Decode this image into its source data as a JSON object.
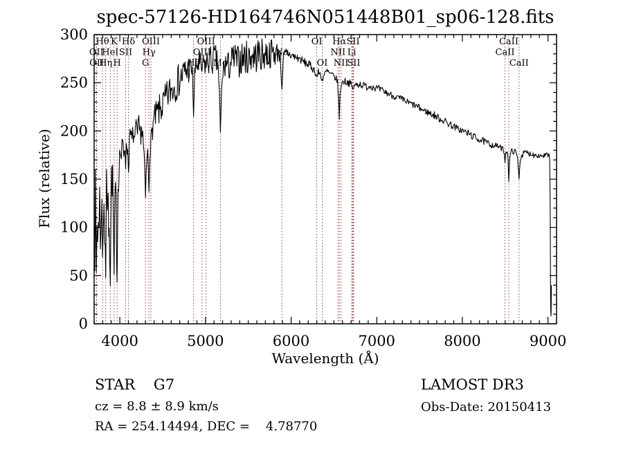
{
  "title": "spec-57126-HD164746N051448B01_sp06-128.fits",
  "annotations": {
    "class_line": "STAR    G7",
    "cz_line": "cz = 8.8 ± 8.9 km/s",
    "radec_line": "RA = 254.14494, DEC =    4.78770",
    "survey": "LAMOST DR3",
    "obs_date": "Obs-Date: 20150413"
  },
  "colors": {
    "trace": "#000000",
    "frame": "#000000",
    "marker_line": "#993432",
    "background": "#ffffff"
  },
  "chart_data": {
    "type": "line",
    "title": "spec-57126-HD164746N051448B01_sp06-128.fits",
    "xlabel": "Wavelength (Å)",
    "ylabel": "Flux (relative)",
    "xlim": [
      3700,
      9100
    ],
    "ylim": [
      0,
      300
    ],
    "x_major_ticks": [
      4000,
      5000,
      6000,
      7000,
      8000,
      9000
    ],
    "y_major_ticks": [
      0,
      50,
      100,
      150,
      200,
      250,
      300
    ],
    "x_minor_step": 100,
    "y_minor_step": 10,
    "grid": false,
    "legend": "none",
    "series_name": "flux_relative_vs_wavelength_A",
    "anchor_format": [
      "wavelength_A",
      "flux_relative",
      "noise_amplitude"
    ],
    "anchors": [
      [
        3700,
        55,
        4
      ],
      [
        3703,
        125,
        25
      ],
      [
        3708,
        90,
        40
      ],
      [
        3714,
        120,
        42
      ],
      [
        3720,
        75,
        42
      ],
      [
        3726,
        52,
        35
      ],
      [
        3733,
        110,
        42
      ],
      [
        3741,
        88,
        44
      ],
      [
        3749,
        128,
        44
      ],
      [
        3757,
        95,
        44
      ],
      [
        3765,
        122,
        44
      ],
      [
        3773,
        98,
        42
      ],
      [
        3781,
        126,
        42
      ],
      [
        3790,
        108,
        40
      ],
      [
        3798,
        68,
        30
      ],
      [
        3806,
        118,
        38
      ],
      [
        3815,
        135,
        40
      ],
      [
        3824,
        100,
        42
      ],
      [
        3835,
        60,
        30
      ],
      [
        3845,
        122,
        40
      ],
      [
        3854,
        138,
        40
      ],
      [
        3864,
        104,
        42
      ],
      [
        3875,
        128,
        40
      ],
      [
        3889,
        50,
        26
      ],
      [
        3899,
        135,
        34
      ],
      [
        3910,
        158,
        30
      ],
      [
        3921,
        122,
        30
      ],
      [
        3933,
        44,
        20
      ],
      [
        3944,
        132,
        26
      ],
      [
        3956,
        118,
        26
      ],
      [
        3968,
        56,
        20
      ],
      [
        3979,
        142,
        18
      ],
      [
        3991,
        165,
        15
      ],
      [
        4004,
        180,
        14
      ],
      [
        4018,
        172,
        14
      ],
      [
        4032,
        186,
        13
      ],
      [
        4046,
        178,
        13
      ],
      [
        4060,
        188,
        12
      ],
      [
        4068,
        168,
        10
      ],
      [
        4080,
        188,
        12
      ],
      [
        4092,
        178,
        11
      ],
      [
        4101,
        160,
        9
      ],
      [
        4112,
        188,
        12
      ],
      [
        4126,
        195,
        13
      ],
      [
        4142,
        188,
        13
      ],
      [
        4158,
        198,
        13
      ],
      [
        4174,
        190,
        13
      ],
      [
        4190,
        200,
        13
      ],
      [
        4206,
        194,
        14
      ],
      [
        4222,
        203,
        14
      ],
      [
        4238,
        196,
        14
      ],
      [
        4254,
        204,
        14
      ],
      [
        4268,
        194,
        13
      ],
      [
        4284,
        172,
        11
      ],
      [
        4300,
        130,
        8
      ],
      [
        4312,
        166,
        11
      ],
      [
        4326,
        176,
        11
      ],
      [
        4340,
        140,
        8
      ],
      [
        4352,
        182,
        11
      ],
      [
        4363,
        188,
        10
      ],
      [
        4376,
        200,
        12
      ],
      [
        4395,
        210,
        14
      ],
      [
        4430,
        217,
        16
      ],
      [
        4470,
        222,
        17
      ],
      [
        4510,
        228,
        17
      ],
      [
        4550,
        235,
        18
      ],
      [
        4590,
        242,
        18
      ],
      [
        4630,
        246,
        18
      ],
      [
        4670,
        250,
        18
      ],
      [
        4710,
        255,
        18
      ],
      [
        4750,
        260,
        18
      ],
      [
        4790,
        263,
        17
      ],
      [
        4830,
        265,
        13
      ],
      [
        4848,
        260,
        8
      ],
      [
        4861,
        216,
        4
      ],
      [
        4875,
        260,
        8
      ],
      [
        4893,
        267,
        13
      ],
      [
        4920,
        270,
        16
      ],
      [
        4945,
        266,
        14
      ],
      [
        4959,
        263,
        10
      ],
      [
        4982,
        270,
        14
      ],
      [
        5007,
        268,
        12
      ],
      [
        5032,
        274,
        16
      ],
      [
        5060,
        272,
        17
      ],
      [
        5090,
        275,
        17
      ],
      [
        5120,
        273,
        17
      ],
      [
        5148,
        268,
        10
      ],
      [
        5163,
        238,
        6
      ],
      [
        5175,
        198,
        3
      ],
      [
        5188,
        242,
        6
      ],
      [
        5205,
        262,
        12
      ],
      [
        5235,
        270,
        16
      ],
      [
        5268,
        266,
        17
      ],
      [
        5300,
        272,
        17
      ],
      [
        5340,
        275,
        17
      ],
      [
        5380,
        272,
        17
      ],
      [
        5420,
        275,
        18
      ],
      [
        5460,
        277,
        18
      ],
      [
        5500,
        275,
        18
      ],
      [
        5540,
        279,
        18
      ],
      [
        5580,
        277,
        18
      ],
      [
        5620,
        280,
        18
      ],
      [
        5660,
        278,
        18
      ],
      [
        5700,
        281,
        17
      ],
      [
        5740,
        279,
        16
      ],
      [
        5780,
        282,
        15
      ],
      [
        5820,
        280,
        13
      ],
      [
        5850,
        283,
        11
      ],
      [
        5872,
        278,
        7
      ],
      [
        5893,
        245,
        4
      ],
      [
        5912,
        276,
        7
      ],
      [
        5935,
        279,
        8
      ],
      [
        5960,
        281,
        7
      ],
      [
        5990,
        279,
        6
      ],
      [
        6020,
        278,
        5
      ],
      [
        6060,
        276,
        5
      ],
      [
        6100,
        275,
        4.5
      ],
      [
        6140,
        272,
        4.5
      ],
      [
        6180,
        270,
        4.5
      ],
      [
        6220,
        268,
        4.5
      ],
      [
        6255,
        265,
        4.5
      ],
      [
        6285,
        261,
        4
      ],
      [
        6300,
        256,
        3
      ],
      [
        6318,
        261,
        4
      ],
      [
        6340,
        259,
        4
      ],
      [
        6364,
        253,
        3
      ],
      [
        6384,
        258,
        4
      ],
      [
        6420,
        262,
        4
      ],
      [
        6455,
        259,
        4
      ],
      [
        6490,
        257,
        4
      ],
      [
        6520,
        255,
        4
      ],
      [
        6542,
        251,
        3
      ],
      [
        6556,
        232,
        2
      ],
      [
        6563,
        212,
        1.5
      ],
      [
        6572,
        238,
        2
      ],
      [
        6585,
        248,
        3
      ],
      [
        6610,
        252,
        4
      ],
      [
        6645,
        251,
        4
      ],
      [
        6680,
        250,
        4
      ],
      [
        6705,
        248,
        3
      ],
      [
        6717,
        244,
        3
      ],
      [
        6731,
        245,
        3
      ],
      [
        6760,
        248,
        4
      ],
      [
        6800,
        249,
        4
      ],
      [
        6845,
        247,
        4
      ],
      [
        6890,
        246,
        4
      ],
      [
        6935,
        247,
        4
      ],
      [
        6980,
        245,
        4
      ],
      [
        7030,
        243,
        4
      ],
      [
        7080,
        241,
        4
      ],
      [
        7130,
        239,
        3.5
      ],
      [
        7180,
        237,
        3.5
      ],
      [
        7230,
        235,
        3.5
      ],
      [
        7280,
        233,
        4
      ],
      [
        7330,
        231,
        4
      ],
      [
        7380,
        229,
        3.5
      ],
      [
        7430,
        227,
        3.5
      ],
      [
        7480,
        225,
        3.5
      ],
      [
        7530,
        222,
        3.5
      ],
      [
        7580,
        220,
        3.5
      ],
      [
        7630,
        218,
        4
      ],
      [
        7680,
        216,
        4
      ],
      [
        7730,
        213,
        4
      ],
      [
        7780,
        211,
        4
      ],
      [
        7830,
        208,
        4
      ],
      [
        7880,
        206,
        4
      ],
      [
        7930,
        203,
        3.5
      ],
      [
        7980,
        201,
        3.5
      ],
      [
        8030,
        199,
        4
      ],
      [
        8080,
        197,
        4
      ],
      [
        8130,
        194,
        4
      ],
      [
        8180,
        192,
        3.5
      ],
      [
        8230,
        190,
        4
      ],
      [
        8280,
        188,
        3.5
      ],
      [
        8330,
        186,
        3.5
      ],
      [
        8380,
        185,
        3
      ],
      [
        8420,
        184,
        3
      ],
      [
        8455,
        182,
        3
      ],
      [
        8480,
        181,
        2.5
      ],
      [
        8490,
        176,
        2
      ],
      [
        8498,
        168,
        1.5
      ],
      [
        8508,
        178,
        2
      ],
      [
        8522,
        180,
        2.5
      ],
      [
        8534,
        171,
        1.5
      ],
      [
        8542,
        148,
        1
      ],
      [
        8552,
        170,
        1.5
      ],
      [
        8566,
        178,
        2.5
      ],
      [
        8585,
        180,
        3
      ],
      [
        8605,
        178,
        3
      ],
      [
        8625,
        179,
        3
      ],
      [
        8645,
        171,
        2
      ],
      [
        8662,
        151,
        1
      ],
      [
        8676,
        170,
        2
      ],
      [
        8695,
        175,
        3
      ],
      [
        8720,
        177,
        3
      ],
      [
        8748,
        178,
        3
      ],
      [
        8776,
        176,
        3
      ],
      [
        8805,
        177,
        3
      ],
      [
        8835,
        175,
        3
      ],
      [
        8865,
        176,
        3
      ],
      [
        8895,
        174,
        3
      ],
      [
        8925,
        175,
        3
      ],
      [
        8955,
        174,
        3
      ],
      [
        8980,
        176,
        3
      ],
      [
        9000,
        174,
        2.5
      ],
      [
        9012,
        176,
        2
      ],
      [
        9020,
        170,
        2
      ],
      [
        9026,
        120,
        0
      ],
      [
        9031,
        15,
        0
      ],
      [
        9036,
        8,
        0
      ],
      [
        9040,
        40,
        0
      ]
    ],
    "spectral_line_markers": [
      {
        "name": "OII",
        "wavelength": 3727,
        "label_row": 2
      },
      {
        "name": "OII",
        "wavelength": 3729,
        "label_row": 3
      },
      {
        "name": "Hθ",
        "wavelength": 3798,
        "label_row": 1
      },
      {
        "name": "Hη",
        "wavelength": 3835,
        "label_row": 3
      },
      {
        "name": "HeI",
        "wavelength": 3889,
        "label_row": 2
      },
      {
        "name": "K",
        "wavelength": 3933,
        "label_row": 1
      },
      {
        "name": "H",
        "wavelength": 3968,
        "label_row": 3
      },
      {
        "name": "SII",
        "wavelength": 4068,
        "label_row": 2
      },
      {
        "name": "Hδ",
        "wavelength": 4101,
        "label_row": 1
      },
      {
        "name": "G",
        "wavelength": 4300,
        "label_row": 3
      },
      {
        "name": "Hγ",
        "wavelength": 4340,
        "label_row": 2
      },
      {
        "name": "OIII",
        "wavelength": 4363,
        "label_row": 1
      },
      {
        "name": "Hβ",
        "wavelength": 4861,
        "label_row": 3
      },
      {
        "name": "OIII",
        "wavelength": 4959,
        "label_row": 2
      },
      {
        "name": "OIII",
        "wavelength": 5007,
        "label_row": 1
      },
      {
        "name": "Mg",
        "wavelength": 5175,
        "label_row": 3
      },
      {
        "name": "Na",
        "wavelength": 5893,
        "label_row": 2
      },
      {
        "name": "OI",
        "wavelength": 6300,
        "label_row": 1
      },
      {
        "name": "OI",
        "wavelength": 6364,
        "label_row": 3
      },
      {
        "name": "NII",
        "wavelength": 6548,
        "label_row": 2
      },
      {
        "name": "Hα",
        "wavelength": 6563,
        "label_row": 1
      },
      {
        "name": "NII",
        "wavelength": 6583,
        "label_row": 3
      },
      {
        "name": "Li",
        "wavelength": 6708,
        "label_row": 2
      },
      {
        "name": "SII",
        "wavelength": 6717,
        "label_row": 0
      },
      {
        "name": "SII",
        "wavelength": 6724,
        "label_row": 1
      },
      {
        "name": "SII",
        "wavelength": 6731,
        "label_row": 3
      },
      {
        "name": "CaII",
        "wavelength": 8498,
        "label_row": 2
      },
      {
        "name": "CaII",
        "wavelength": 8542,
        "label_row": 1
      },
      {
        "name": "CaII",
        "wavelength": 8662,
        "label_row": 3
      }
    ]
  }
}
